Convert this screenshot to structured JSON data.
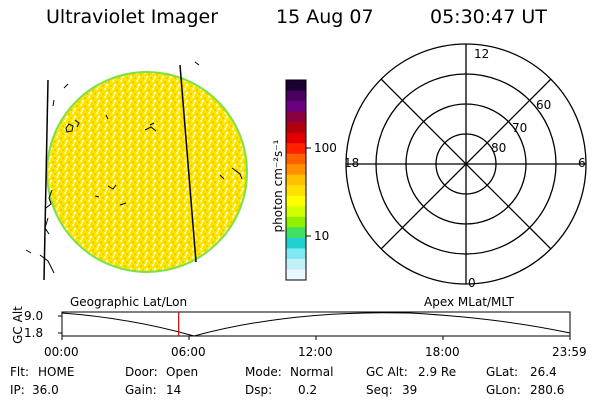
{
  "header": {
    "title": "Ultraviolet Imager",
    "date": "15 Aug 07",
    "time": "05:30:47 UT"
  },
  "image_panel": {
    "caption": "Geographic Lat/Lon"
  },
  "colorbar": {
    "unit_label": "photon cm⁻²s⁻¹",
    "ticks": [
      "100",
      "10"
    ],
    "colors": [
      "#1a0030",
      "#4a0060",
      "#6a0080",
      "#8a0040",
      "#b00010",
      "#e00000",
      "#ff2000",
      "#ff6000",
      "#ff9000",
      "#ffc000",
      "#ffe000",
      "#ffff00",
      "#d0ff00",
      "#90f000",
      "#40e060",
      "#20d0d0",
      "#80e8f0",
      "#c0f0f8",
      "#e8f8fc"
    ]
  },
  "polar_plot": {
    "caption": "Apex MLat/MLT",
    "mlt_labels": {
      "top": "12",
      "left": "18",
      "right": "6",
      "bottom": "0"
    },
    "lat_labels": [
      "60",
      "70",
      "80"
    ]
  },
  "altitude_plot": {
    "ylabel": "GC Alt",
    "yticks": [
      "9.0",
      "1.8"
    ],
    "xticks": [
      "00:00",
      "06:00",
      "12:00",
      "18:00",
      "23:59"
    ],
    "current_time_marker": "05:30:47",
    "line_color": "#d00000"
  },
  "status": {
    "flt_label": "Flt:",
    "flt_value": "HOME",
    "ip_label": "IP:",
    "ip_value": "36.0",
    "door_label": "Door:",
    "door_value": "Open",
    "gain_label": "Gain:",
    "gain_value": "14",
    "mode_label": "Mode:",
    "mode_value": "Normal",
    "dsp_label": "Dsp:",
    "dsp_value": "0.2",
    "gcalt_label": "GC Alt:",
    "gcalt_value": "2.9 Re",
    "seq_label": "Seq:",
    "seq_value": "39",
    "glat_label": "GLat:",
    "glat_value": "26.4",
    "glon_label": "GLon:",
    "glon_value": "280.6"
  }
}
